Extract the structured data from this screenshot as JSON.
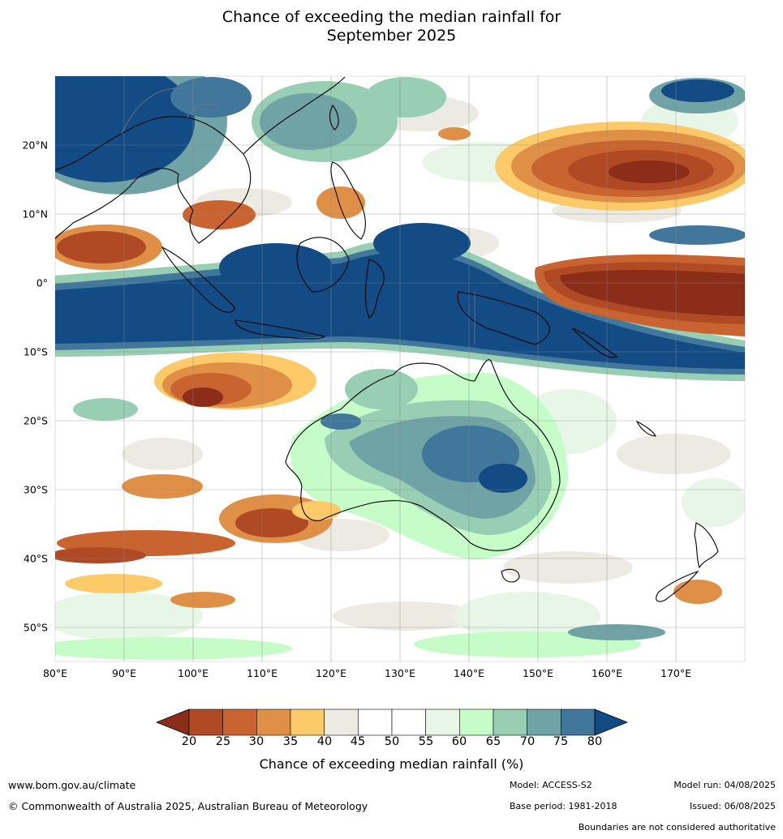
{
  "title_line1": "Chance of exceeding the median rainfall for",
  "title_line2": "September 2025",
  "map": {
    "lat_labels": [
      "20°N",
      "10°N",
      "0°",
      "10°S",
      "20°S",
      "30°S",
      "40°S",
      "50°S"
    ],
    "lon_labels": [
      "80°E",
      "90°E",
      "100°E",
      "110°E",
      "120°E",
      "130°E",
      "140°E",
      "150°E",
      "160°E",
      "170°E"
    ],
    "colors": {
      "c20": "#8c2d1a",
      "c25": "#b04a25",
      "c30": "#c96430",
      "c35": "#e08f46",
      "c40": "#fdca6a",
      "c45": "#edeae3",
      "c50": "#ffffff",
      "c55": "#ffffff",
      "c60": "#e8f6e8",
      "c65": "#c5fcc8",
      "c70": "#98cfb4",
      "c75": "#6fa3a6",
      "c80": "#41779b",
      "c85": "#134b84"
    }
  },
  "colorbar": {
    "ticks": [
      "20",
      "25",
      "30",
      "35",
      "40",
      "45",
      "50",
      "55",
      "60",
      "65",
      "70",
      "75",
      "80"
    ],
    "colors": [
      "#b04a25",
      "#c96430",
      "#e08f46",
      "#fdca6a",
      "#edeae3",
      "#ffffff",
      "#ffffff",
      "#e8f6e8",
      "#c5fcc8",
      "#98cfb4",
      "#6fa3a6",
      "#41779b"
    ],
    "low_color": "#8c2d1a",
    "high_color": "#134b84",
    "label": "Chance of exceeding median rainfall (%)"
  },
  "footer": {
    "url": "www.bom.gov.au/climate",
    "copyright": "© Commonwealth of Australia 2025, Australian Bureau of Meteorology",
    "model": "Model: ACCESS-S2",
    "base_period": "Base period: 1981-2018",
    "model_run": "Model run: 04/08/2025",
    "issued": "Issued: 06/08/2025",
    "disclaimer": "Boundaries are not considered authoritative"
  }
}
